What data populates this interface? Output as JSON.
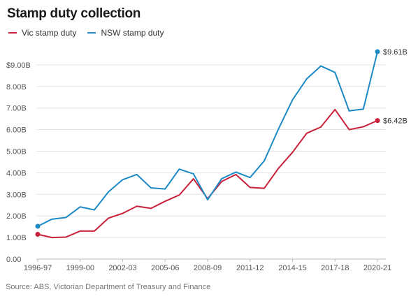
{
  "chart_data": {
    "type": "line",
    "title": "Stamp duty collection",
    "xlabel": "",
    "ylabel": "",
    "x": [
      "1996-97",
      "1997-98",
      "1998-99",
      "1999-00",
      "2000-01",
      "2001-02",
      "2002-03",
      "2003-04",
      "2004-05",
      "2005-06",
      "2006-07",
      "2007-08",
      "2008-09",
      "2009-10",
      "2010-11",
      "2011-12",
      "2012-13",
      "2013-14",
      "2014-15",
      "2015-16",
      "2016-17",
      "2017-18",
      "2018-19",
      "2019-20",
      "2020-21"
    ],
    "x_tick_labels": [
      "1996-97",
      "1999-00",
      "2002-03",
      "2005-06",
      "2008-09",
      "2011-12",
      "2014-15",
      "2017-18",
      "2020-21"
    ],
    "y_tick_labels": [
      "0.00",
      "1.00B",
      "2.00B",
      "3.00B",
      "4.00B",
      "5.00B",
      "6.00B",
      "7.00B",
      "8.00B",
      "$9.00B"
    ],
    "ylim": [
      0,
      10
    ],
    "grid": true,
    "legend_position": "top-left",
    "series": [
      {
        "name": "Vic stamp duty",
        "color": "#c8213a",
        "values": [
          1.15,
          1.0,
          1.02,
          1.3,
          1.3,
          1.9,
          2.12,
          2.45,
          2.35,
          2.68,
          2.97,
          3.72,
          2.8,
          3.6,
          3.92,
          3.32,
          3.28,
          4.2,
          4.95,
          5.83,
          6.12,
          6.93,
          6.0,
          6.13,
          6.42
        ],
        "end_label": "$6.42B"
      },
      {
        "name": "NSW stamp duty",
        "color": "#1d8ac6",
        "values": [
          1.52,
          1.85,
          1.93,
          2.42,
          2.28,
          3.12,
          3.68,
          3.92,
          3.3,
          3.25,
          4.17,
          3.95,
          2.75,
          3.73,
          4.03,
          3.78,
          4.55,
          6.02,
          7.38,
          8.35,
          8.95,
          8.65,
          6.87,
          6.95,
          9.61
        ],
        "end_label": "$9.61B"
      }
    ]
  },
  "source": "Source: ABS, Victorian Department of Treasury and Finance"
}
